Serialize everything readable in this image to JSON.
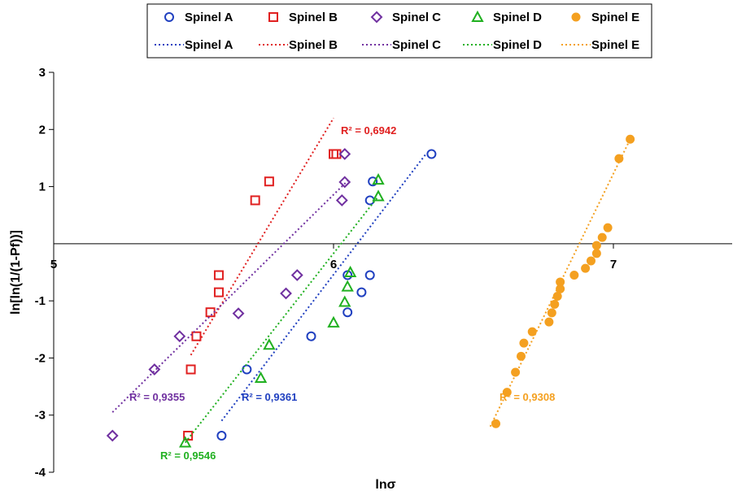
{
  "chart_data": {
    "type": "scatter",
    "xlabel": "lnσ",
    "ylabel": "ln[ln(1/(1-Pf))]",
    "xlim": [
      5,
      7.5
    ],
    "ylim": [
      -4,
      3
    ],
    "x_ticks": [
      "5",
      "6",
      "7"
    ],
    "y_ticks": [
      "3",
      "2",
      "1",
      "-1",
      "-2",
      "-3",
      "-4"
    ],
    "x_tick_values": [
      5,
      6,
      7
    ],
    "y_tick_values": [
      3,
      2,
      1,
      -1,
      -2,
      -3,
      -4
    ],
    "legend_position": "top",
    "series": [
      {
        "name": "Spinel A",
        "color": "#2040c0",
        "marker": "circle",
        "points": [
          [
            5.6,
            -3.36
          ],
          [
            5.69,
            -2.2
          ],
          [
            5.92,
            -1.62
          ],
          [
            6.05,
            -1.2
          ],
          [
            6.05,
            -0.55
          ],
          [
            6.1,
            -0.85
          ],
          [
            6.13,
            -0.55
          ],
          [
            6.13,
            0.76
          ],
          [
            6.14,
            1.09
          ],
          [
            6.35,
            1.57
          ]
        ],
        "fit": [
          [
            5.6,
            -3.1
          ],
          [
            6.33,
            1.57
          ]
        ],
        "r2": "R² = 0,9361",
        "fit_label": "Spinel A"
      },
      {
        "name": "Spinel B",
        "color": "#e02020",
        "marker": "square",
        "points": [
          [
            5.48,
            -3.36
          ],
          [
            5.49,
            -2.2
          ],
          [
            5.51,
            -1.62
          ],
          [
            5.56,
            -1.2
          ],
          [
            5.59,
            -0.85
          ],
          [
            5.59,
            -0.55
          ],
          [
            5.72,
            0.76
          ],
          [
            5.77,
            1.09
          ],
          [
            6.0,
            1.57
          ],
          [
            6.01,
            1.57
          ]
        ],
        "fit": [
          [
            5.49,
            -1.95
          ],
          [
            6.0,
            2.2
          ]
        ],
        "r2": "R² = 0,6942",
        "fit_label": "Spinel B"
      },
      {
        "name": "Spinel C",
        "color": "#7030a0",
        "marker": "diamond",
        "points": [
          [
            5.21,
            -3.36
          ],
          [
            5.36,
            -2.2
          ],
          [
            5.45,
            -1.62
          ],
          [
            5.66,
            -1.22
          ],
          [
            5.83,
            -0.87
          ],
          [
            5.87,
            -0.55
          ],
          [
            6.03,
            0.76
          ],
          [
            6.04,
            1.08
          ],
          [
            6.04,
            1.57
          ]
        ],
        "fit": [
          [
            5.21,
            -2.95
          ],
          [
            6.05,
            1.1
          ]
        ],
        "r2": "R² = 0,9355",
        "fit_label": "Spinel C"
      },
      {
        "name": "Spinel D",
        "color": "#20b020",
        "marker": "triangle",
        "points": [
          [
            5.47,
            -3.48
          ],
          [
            5.74,
            -2.35
          ],
          [
            5.77,
            -1.77
          ],
          [
            6.0,
            -1.38
          ],
          [
            6.04,
            -1.02
          ],
          [
            6.05,
            -0.75
          ],
          [
            6.06,
            -0.5
          ],
          [
            6.16,
            0.83
          ],
          [
            6.16,
            1.12
          ]
        ],
        "fit": [
          [
            5.47,
            -3.48
          ],
          [
            6.16,
            0.83
          ]
        ],
        "r2": "R² = 0,9546",
        "fit_label": "Spinel D"
      },
      {
        "name": "Spinel E",
        "color": "#f4a020",
        "marker": "filled-circle",
        "points": [
          [
            6.58,
            -3.15
          ],
          [
            6.62,
            -2.6
          ],
          [
            6.65,
            -2.25
          ],
          [
            6.67,
            -1.97
          ],
          [
            6.68,
            -1.74
          ],
          [
            6.71,
            -1.54
          ],
          [
            6.77,
            -1.37
          ],
          [
            6.78,
            -1.21
          ],
          [
            6.79,
            -1.06
          ],
          [
            6.8,
            -0.92
          ],
          [
            6.81,
            -0.79
          ],
          [
            6.81,
            -0.67
          ],
          [
            6.86,
            -0.55
          ],
          [
            6.9,
            -0.43
          ],
          [
            6.92,
            -0.3
          ],
          [
            6.94,
            -0.17
          ],
          [
            6.94,
            -0.03
          ],
          [
            6.96,
            0.11
          ],
          [
            6.98,
            0.28
          ],
          [
            7.02,
            1.49
          ],
          [
            7.06,
            1.83
          ]
        ],
        "fit": [
          [
            6.56,
            -3.2
          ],
          [
            7.06,
            1.83
          ]
        ],
        "r2": "R² = 0,9308",
        "fit_label": "Spinel E"
      }
    ]
  }
}
